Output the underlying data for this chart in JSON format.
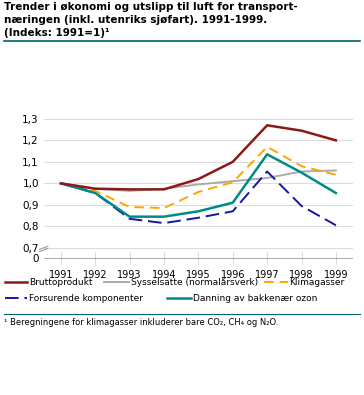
{
  "years": [
    1991,
    1992,
    1993,
    1994,
    1995,
    1996,
    1997,
    1998,
    1999
  ],
  "bruttoprodukt": [
    1.0,
    0.975,
    0.972,
    0.972,
    1.02,
    1.1,
    1.27,
    1.245,
    1.2
  ],
  "sysselsatte": [
    1.0,
    0.975,
    0.965,
    0.975,
    0.995,
    1.01,
    1.025,
    1.055,
    1.06
  ],
  "klimagasser": [
    1.0,
    0.965,
    0.89,
    0.885,
    0.96,
    1.005,
    1.17,
    1.08,
    1.04
  ],
  "forsurende": [
    1.0,
    0.955,
    0.835,
    0.815,
    0.84,
    0.87,
    1.055,
    0.895,
    0.805
  ],
  "bakkenozon": [
    1.0,
    0.955,
    0.845,
    0.845,
    0.87,
    0.91,
    1.135,
    1.05,
    0.955
  ],
  "bruttoprodukt_color": "#8B1A1A",
  "sysselsatte_color": "#AAAAAA",
  "klimagasser_color": "#FFA500",
  "forsurende_color": "#1515A0",
  "bakkenozon_color": "#008B8B",
  "title_line1": "Trender i økonomi og utslipp til luft for transport-",
  "title_line2": "næringen (inkl. utenriks sjøfart). 1991-1999.",
  "title_line3": "(Indeks: 1991=1)¹",
  "legend_row1": [
    "Bruttoprodukt",
    "Sysselsatte (normalårsverk)",
    "Klimagasser"
  ],
  "legend_row2": [
    "Forsurende komponenter",
    "Danning av bakkenær ozon"
  ],
  "footnote": "¹ Beregningene for klimagasser inkluderer bare CO₂, CH₄ og N₂O.",
  "separator_color": "#006666",
  "footnote_line_color": "#006666",
  "yticks_upper": [
    0.7,
    0.8,
    0.9,
    1.0,
    1.1,
    1.2,
    1.3
  ],
  "ytick_zero": 0.0,
  "background_color": "#ffffff"
}
